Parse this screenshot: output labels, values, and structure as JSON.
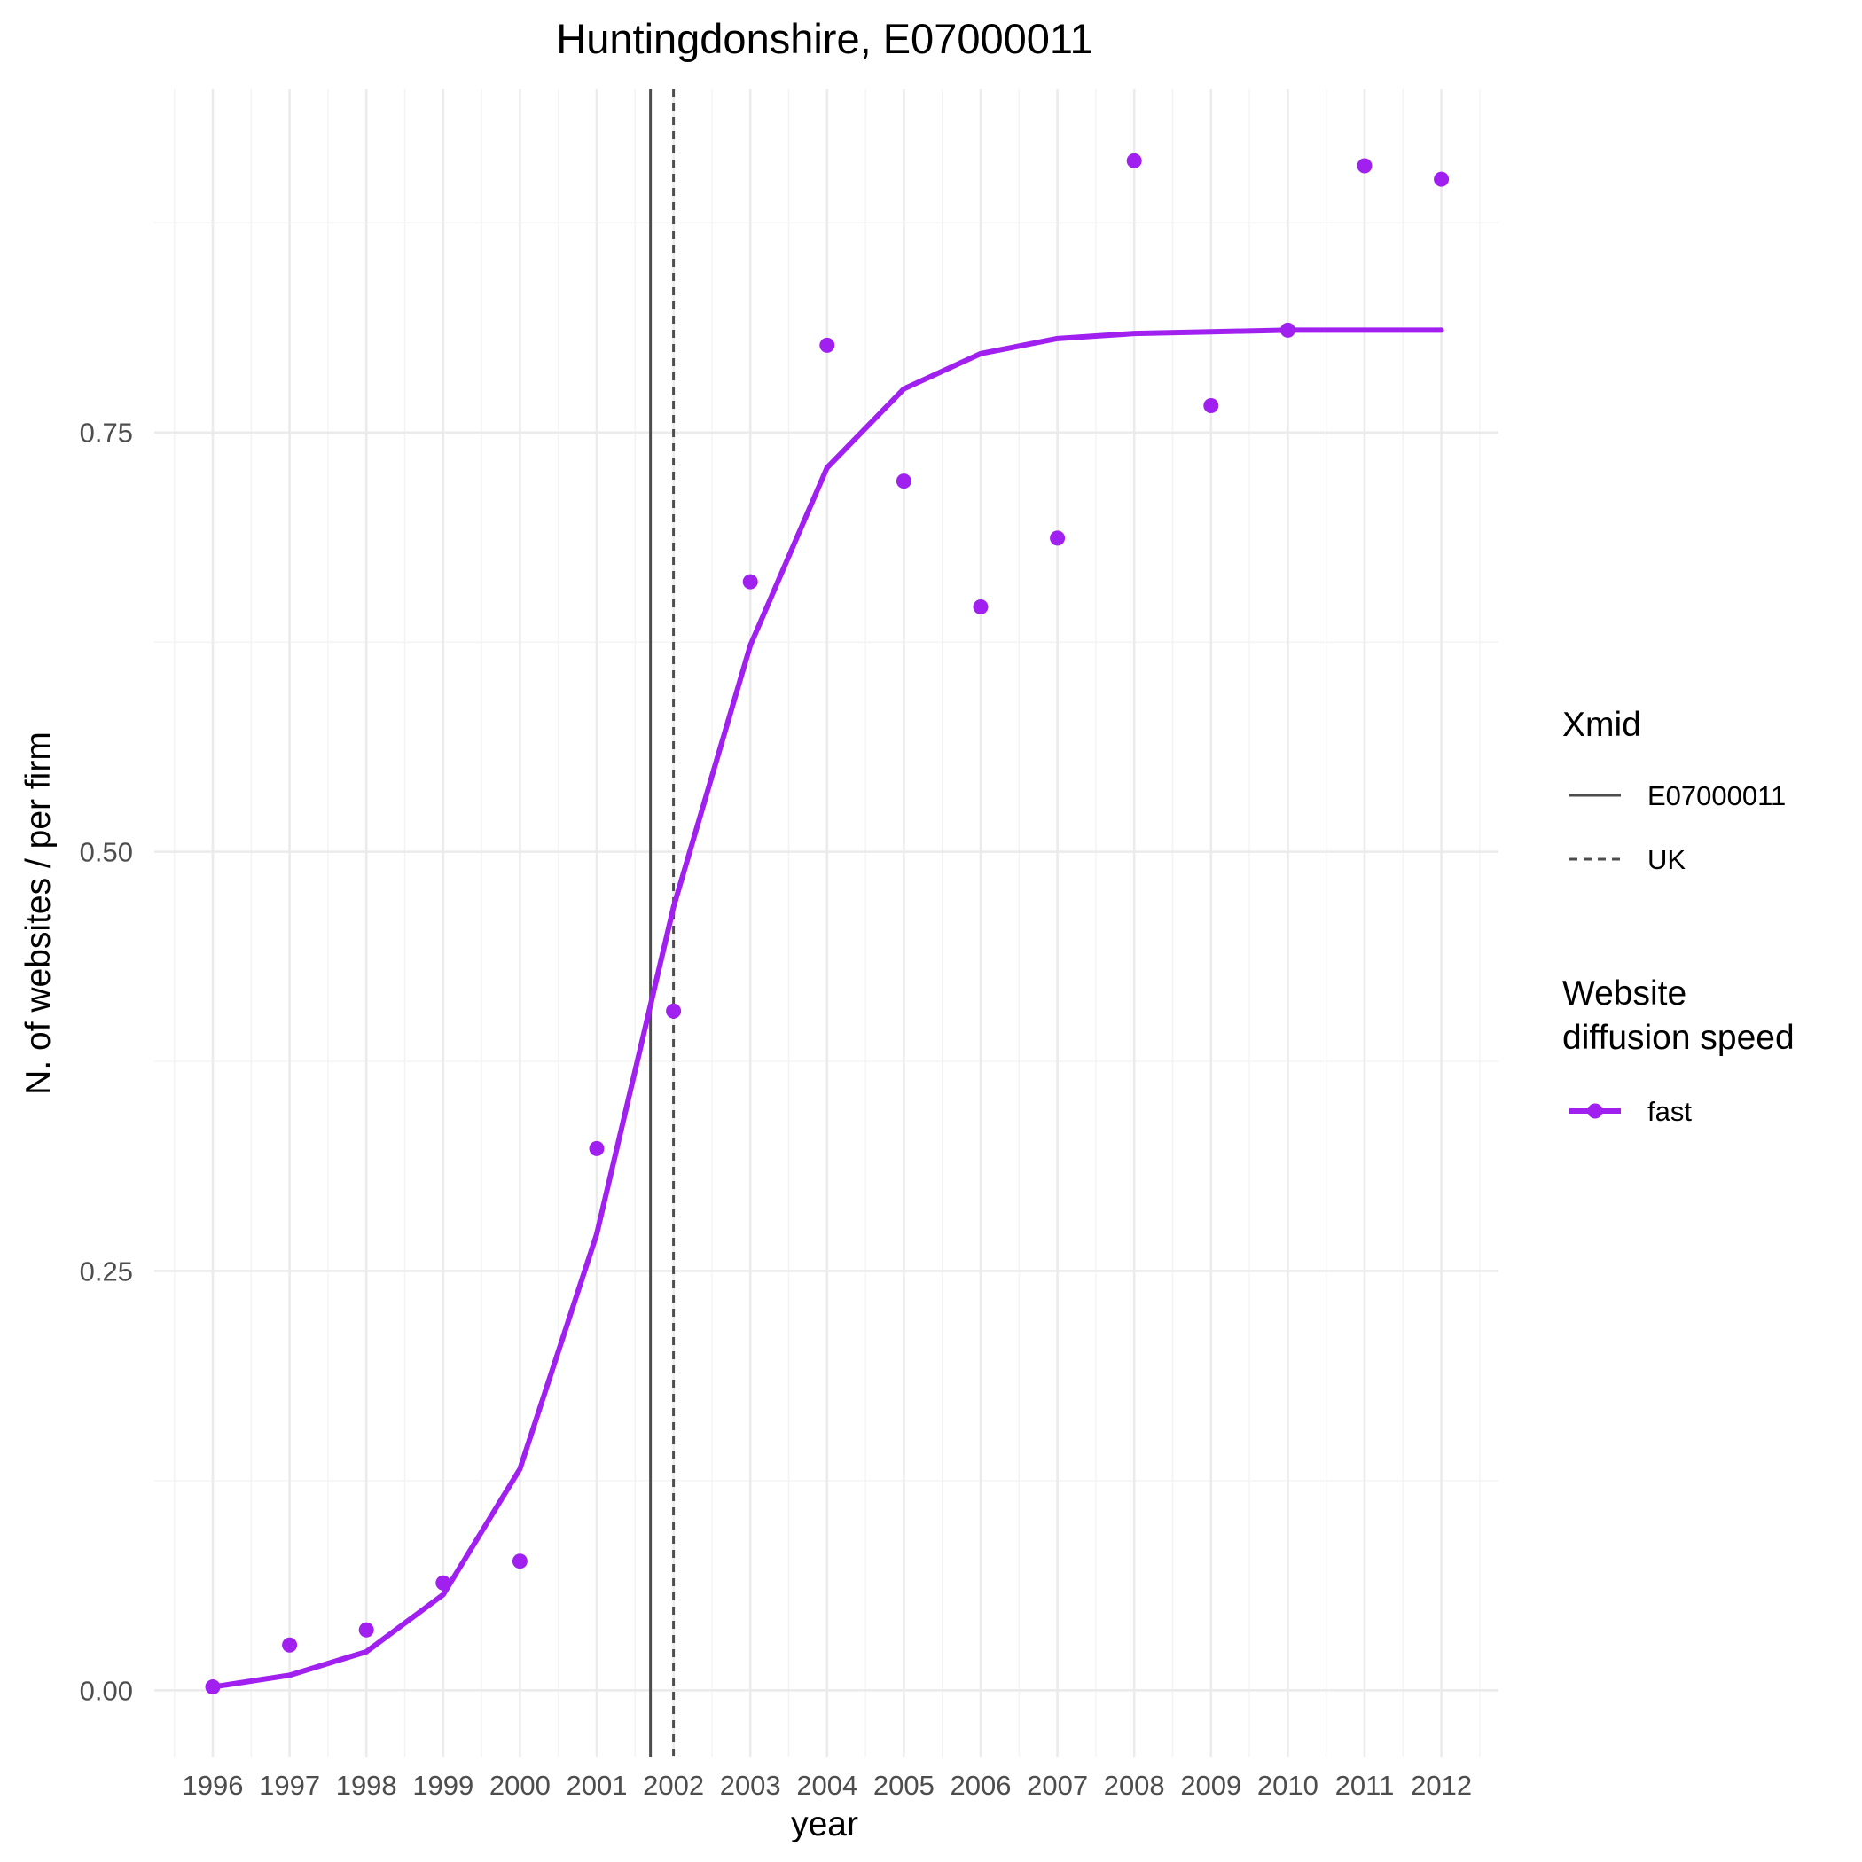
{
  "chart_data": {
    "type": "line",
    "title": "Huntingdonshire, E07000011",
    "xlabel": "year",
    "ylabel": "N. of websites / per firm",
    "x_categories": [
      "1996",
      "1997",
      "1998",
      "1999",
      "2000",
      "2001",
      "2002",
      "2003",
      "2004",
      "2005",
      "2006",
      "2007",
      "2008",
      "2009",
      "2010",
      "2011",
      "2012"
    ],
    "y_ticks": [
      0.0,
      0.25,
      0.5,
      0.75
    ],
    "y_tick_labels": [
      "0.00",
      "0.25",
      "0.50",
      "0.75"
    ],
    "ylim": [
      -0.04,
      0.955
    ],
    "grid": true,
    "series": [
      {
        "name": "fast",
        "color": "#a020f0",
        "points": [
          0.002,
          0.027,
          0.036,
          0.064,
          0.077,
          0.323,
          0.405,
          0.661,
          0.802,
          0.721,
          0.646,
          0.687,
          0.912,
          0.766,
          0.811,
          0.909,
          0.901
        ],
        "fitted": [
          0.002,
          0.009,
          0.023,
          0.057,
          0.132,
          0.272,
          0.467,
          0.623,
          0.729,
          0.776,
          0.797,
          0.806,
          0.809,
          0.81,
          0.811,
          0.811,
          0.811
        ]
      }
    ],
    "vlines": [
      {
        "name": "E07000011",
        "x": 2001.7,
        "style": "solid",
        "color": "#4d4d4d"
      },
      {
        "name": "UK",
        "x": 2002.0,
        "style": "dashed",
        "color": "#4d4d4d"
      }
    ],
    "legend": {
      "position": "right",
      "groups": [
        {
          "title": "Xmid",
          "entries": [
            "E07000011",
            "UK"
          ]
        },
        {
          "title_lines": [
            "Website",
            "diffusion speed"
          ],
          "entries": [
            "fast"
          ]
        }
      ]
    }
  }
}
